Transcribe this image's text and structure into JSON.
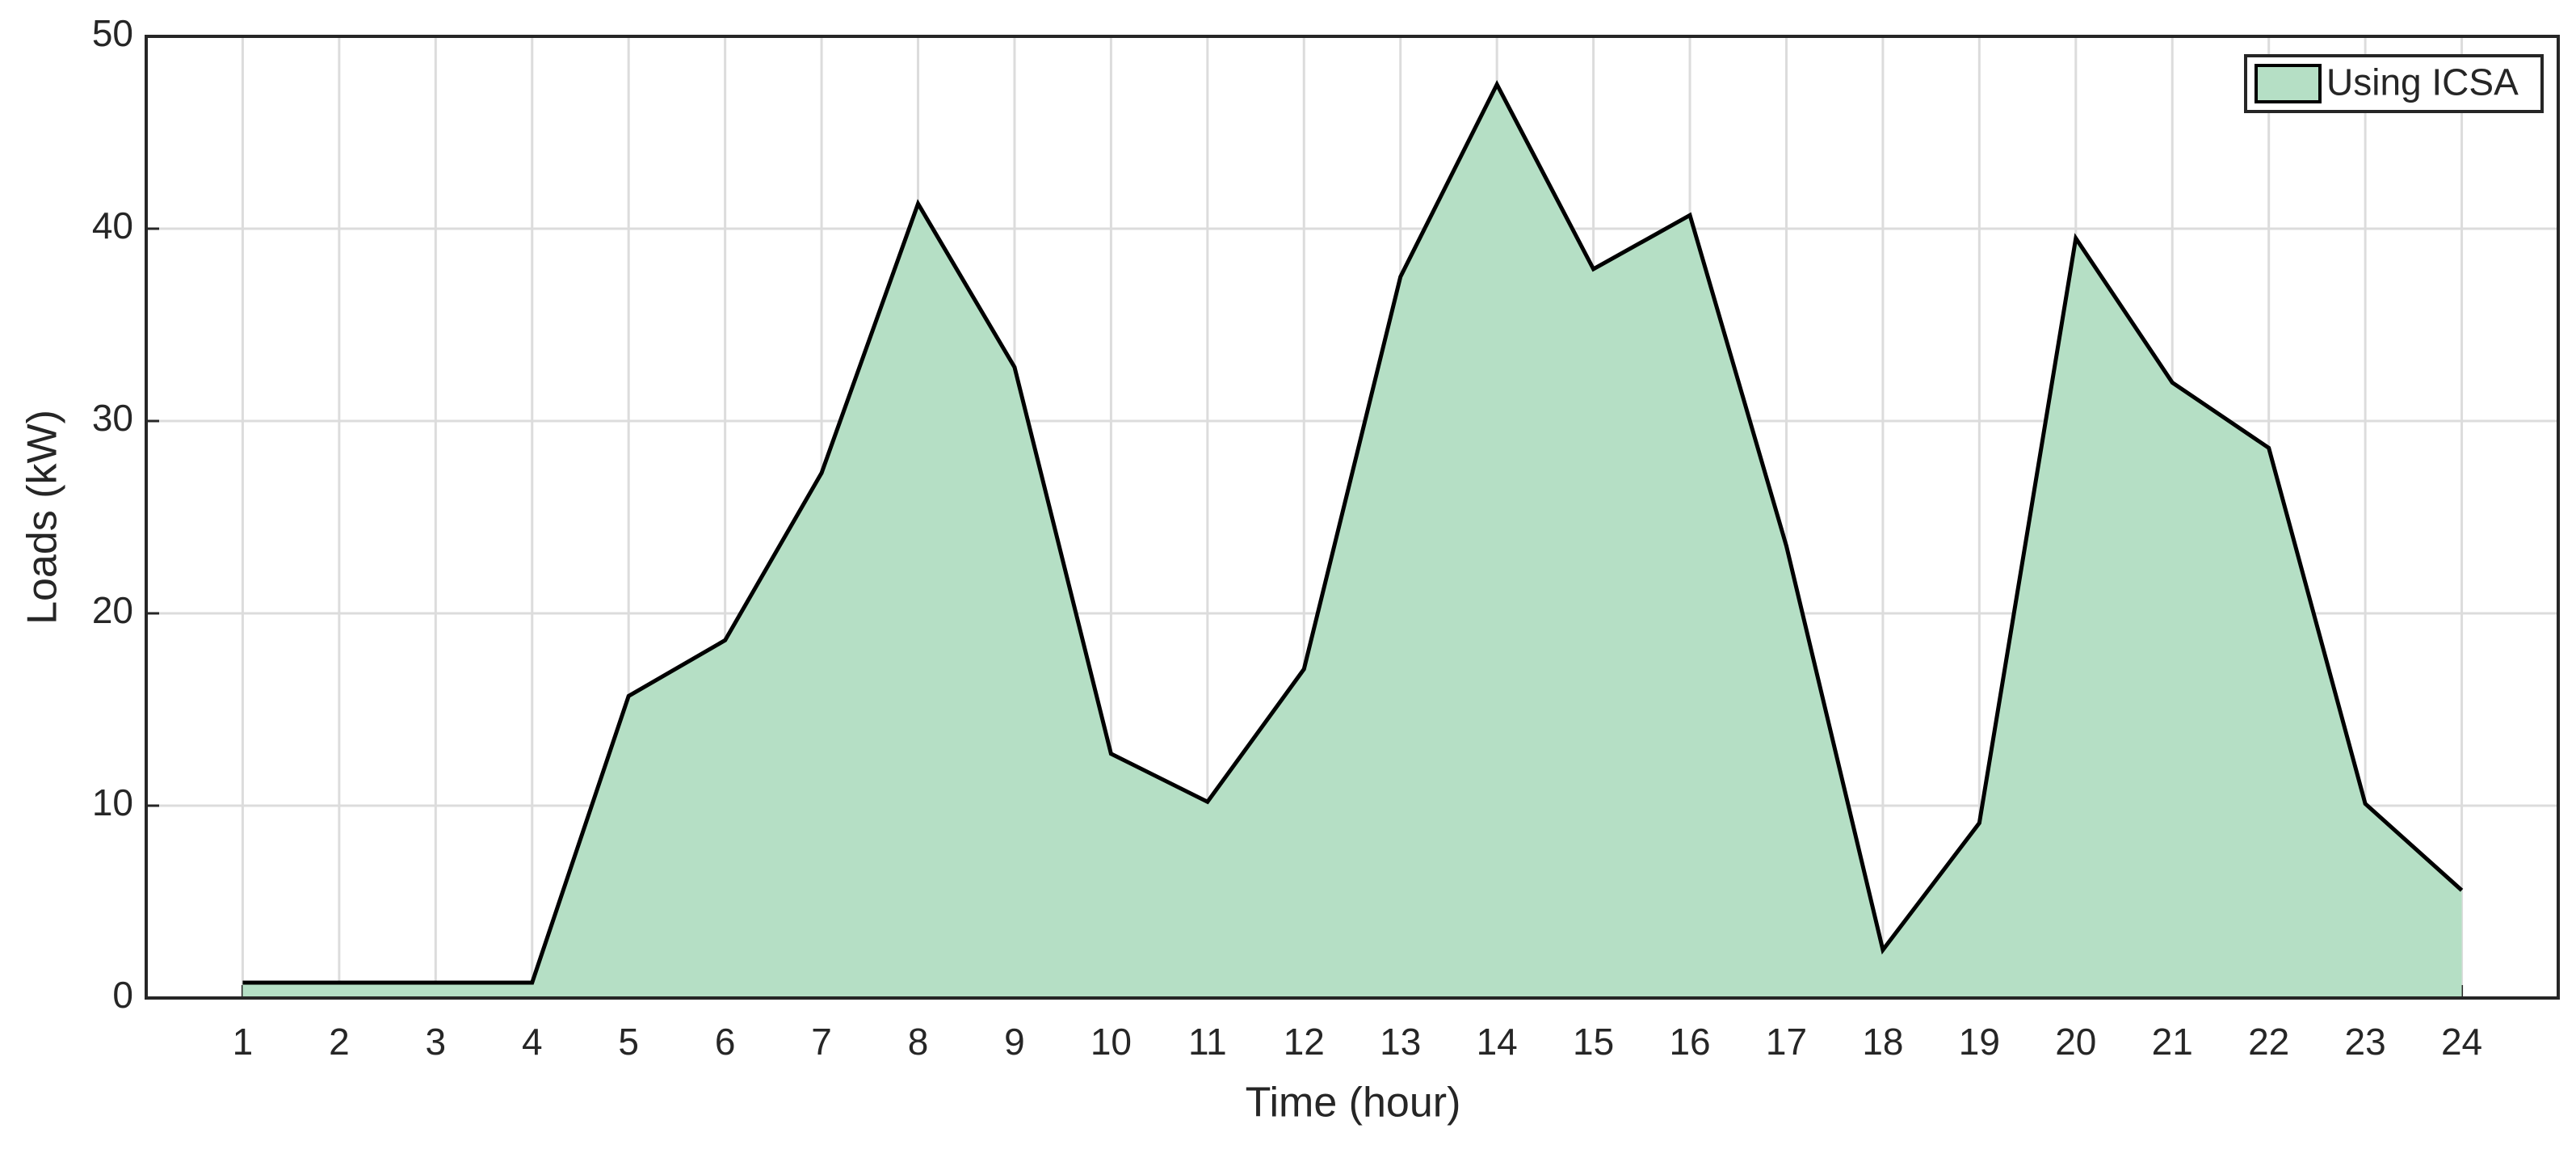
{
  "chart_data": {
    "type": "area",
    "xlabel": "Time (hour)",
    "ylabel": "Loads (kW)",
    "x": [
      1,
      2,
      3,
      4,
      5,
      6,
      7,
      8,
      9,
      10,
      11,
      12,
      13,
      14,
      15,
      16,
      17,
      18,
      19,
      20,
      21,
      22,
      23,
      24
    ],
    "series": [
      {
        "name": "Using ICSA",
        "color": "#b5dfc5",
        "values": [
          0.8,
          0.8,
          0.8,
          0.8,
          15.7,
          18.6,
          27.3,
          41.3,
          32.8,
          12.7,
          10.2,
          17.1,
          37.5,
          47.5,
          37.9,
          40.7,
          23.5,
          2.5,
          9.1,
          39.5,
          32.0,
          28.6,
          10.1,
          5.6
        ]
      }
    ],
    "xlim": [
      0,
      25
    ],
    "xticks": [
      1,
      2,
      3,
      4,
      5,
      6,
      7,
      8,
      9,
      10,
      11,
      12,
      13,
      14,
      15,
      16,
      17,
      18,
      19,
      20,
      21,
      22,
      23,
      24
    ],
    "ylim": [
      0,
      50
    ],
    "yticks": [
      0,
      10,
      20,
      30,
      40,
      50
    ],
    "grid": true,
    "legend": "northeast"
  }
}
